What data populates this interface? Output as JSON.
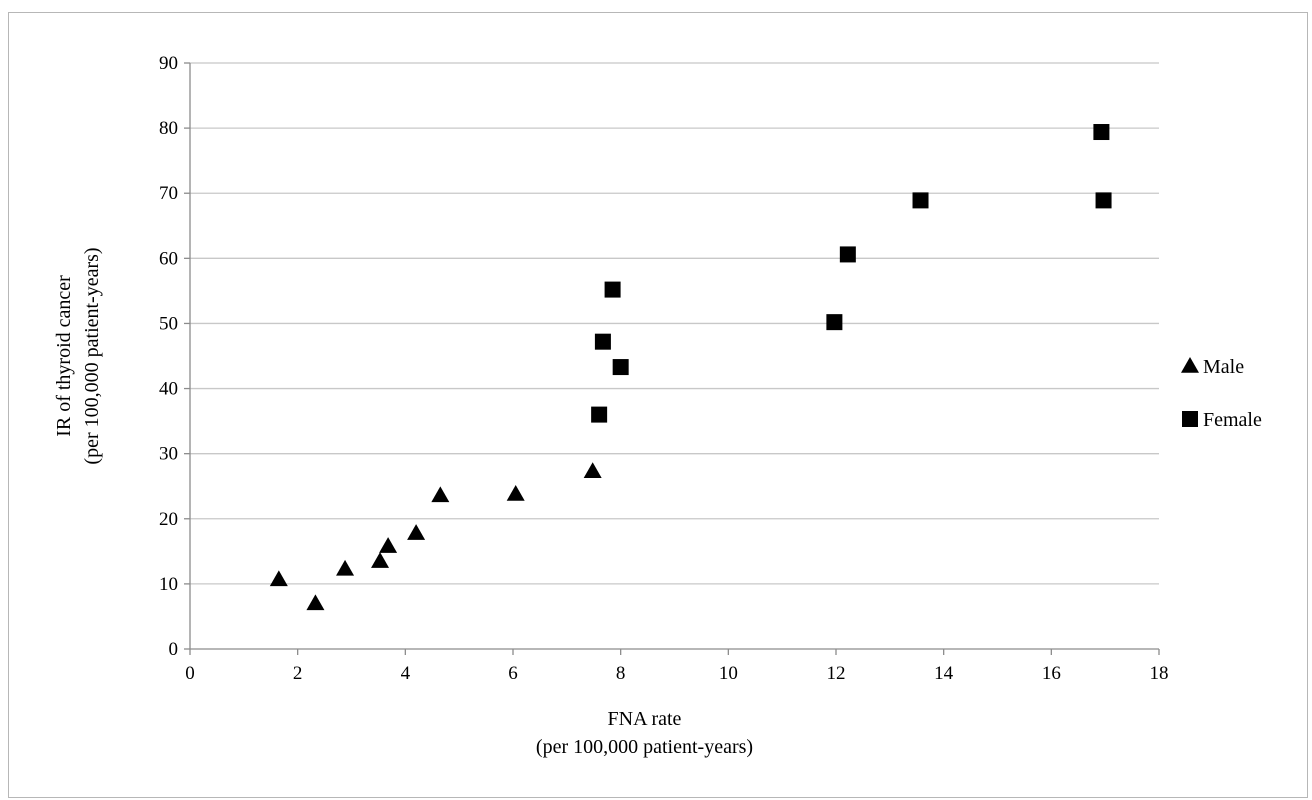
{
  "chart_data": {
    "type": "scatter",
    "title": "",
    "xlabel": [
      "FNA rate",
      "(per 100,000 patient-years)"
    ],
    "ylabel": [
      "IR of thyroid cancer",
      "(per 100,000 patient-years)"
    ],
    "xlim": [
      0,
      18
    ],
    "ylim": [
      0,
      90
    ],
    "xticks": [
      0,
      2,
      4,
      6,
      8,
      10,
      12,
      14,
      16,
      18
    ],
    "yticks": [
      0,
      10,
      20,
      30,
      40,
      50,
      60,
      70,
      80,
      90
    ],
    "grid": "horizontal",
    "legend_position": "right",
    "series": [
      {
        "name": "Male",
        "marker": "triangle",
        "color": "#000000",
        "points": [
          [
            1.65,
            10.7
          ],
          [
            2.33,
            7.0
          ],
          [
            2.88,
            12.3
          ],
          [
            3.53,
            13.5
          ],
          [
            3.68,
            15.8
          ],
          [
            4.2,
            17.8
          ],
          [
            4.65,
            23.6
          ],
          [
            6.05,
            23.8
          ],
          [
            7.48,
            27.3
          ]
        ]
      },
      {
        "name": "Female",
        "marker": "square",
        "color": "#000000",
        "points": [
          [
            7.6,
            36.0
          ],
          [
            7.67,
            47.2
          ],
          [
            7.85,
            55.2
          ],
          [
            8.0,
            43.3
          ],
          [
            11.97,
            50.2
          ],
          [
            12.22,
            60.6
          ],
          [
            13.57,
            68.9
          ],
          [
            16.93,
            79.4
          ],
          [
            16.97,
            68.9
          ]
        ]
      }
    ]
  }
}
